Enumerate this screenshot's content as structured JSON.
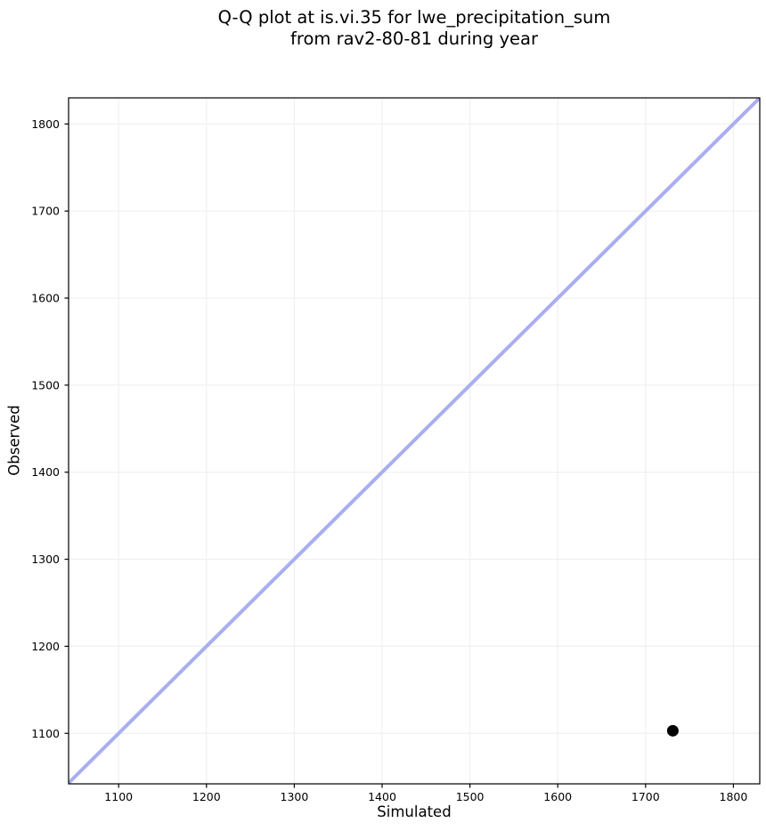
{
  "title": {
    "line1": "Q-Q plot at is.vi.35 for lwe_precipitation_sum",
    "line2": "from rav2-80-81 during year"
  },
  "chart_data": {
    "type": "scatter",
    "subtype": "qq-plot",
    "title": "Q-Q plot at is.vi.35 for lwe_precipitation_sum\nfrom rav2-80-81 during year",
    "xlabel": "Simulated",
    "ylabel": "Observed",
    "xlim": [
      1043,
      1830
    ],
    "ylim": [
      1042,
      1830
    ],
    "xticks": [
      1100,
      1200,
      1300,
      1400,
      1500,
      1600,
      1700,
      1800
    ],
    "yticks": [
      1100,
      1200,
      1300,
      1400,
      1500,
      1600,
      1700,
      1800
    ],
    "grid": true,
    "legend": false,
    "series": [
      {
        "name": "identity_line",
        "type": "line",
        "color": "#a9aef2",
        "stroke_width": 4,
        "points": [
          [
            1042,
            1042
          ],
          [
            1830,
            1830
          ]
        ]
      },
      {
        "name": "observed_vs_simulated",
        "type": "scatter",
        "marker": "circle",
        "color": "#000000",
        "marker_radius": 6.5,
        "points": [
          [
            1731,
            1103
          ]
        ]
      }
    ],
    "colors": {
      "grid": "#f0f0f0",
      "spine": "#000000",
      "tick": "#000000",
      "text": "#000000",
      "background": "#ffffff"
    }
  }
}
